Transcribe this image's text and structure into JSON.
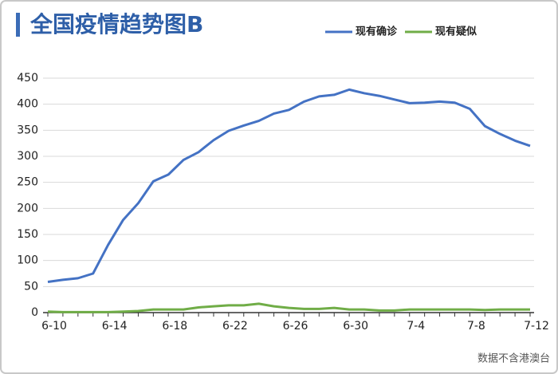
{
  "chart_data": {
    "type": "line",
    "title": "全国疫情趋势图B",
    "note": "数据不含港澳台",
    "categories": [
      "6-10",
      null,
      null,
      null,
      "6-14",
      null,
      null,
      null,
      "6-18",
      null,
      null,
      null,
      "6-22",
      null,
      null,
      null,
      "6-26",
      null,
      null,
      null,
      "6-30",
      null,
      null,
      null,
      "7-4",
      null,
      null,
      null,
      "7-8",
      null,
      null,
      null,
      "7-12"
    ],
    "series": [
      {
        "name": "现有确诊",
        "color": "#4472c4",
        "values": [
          59,
          63,
          66,
          75,
          130,
          178,
          210,
          252,
          265,
          293,
          308,
          331,
          349,
          359,
          368,
          382,
          389,
          405,
          415,
          418,
          428,
          421,
          416,
          409,
          402,
          403,
          405,
          403,
          391,
          358,
          343,
          330,
          320
        ]
      },
      {
        "name": "现有疑似",
        "color": "#70ad47",
        "values": [
          2,
          1,
          1,
          1,
          1,
          2,
          3,
          6,
          6,
          6,
          10,
          12,
          14,
          14,
          17,
          12,
          9,
          7,
          7,
          9,
          6,
          6,
          4,
          4,
          6,
          6,
          6,
          6,
          6,
          5,
          6,
          6,
          6
        ]
      }
    ],
    "ylim": [
      0,
      450
    ],
    "yticks": [
      0,
      50,
      100,
      150,
      200,
      250,
      300,
      350,
      400,
      450
    ],
    "grid": true,
    "legend": "top-right"
  }
}
